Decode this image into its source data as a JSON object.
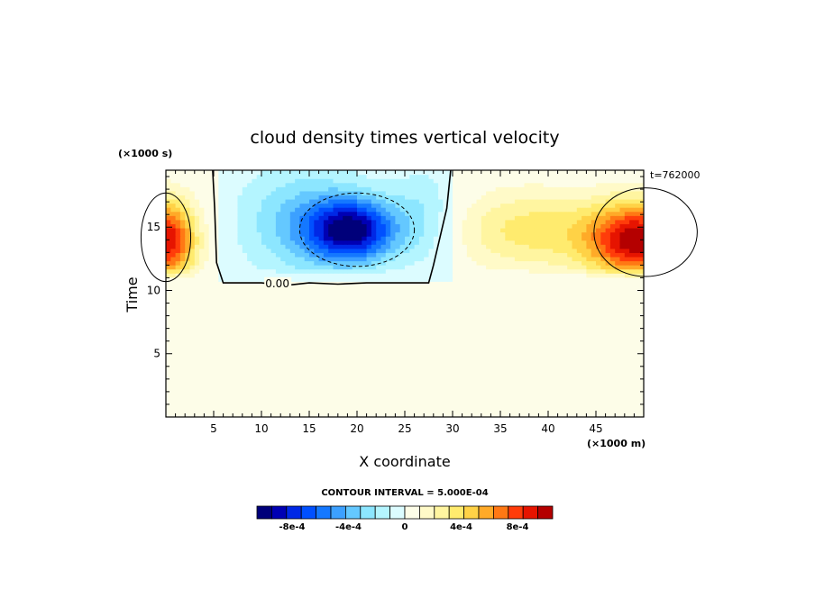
{
  "chart_data": {
    "type": "heatmap",
    "title": "cloud density times vertical velocity",
    "xlabel": "X coordinate",
    "ylabel": "Time",
    "x_unit": "(×1000 m)",
    "y_unit": "(×1000 s)",
    "timestamp": "t=762000",
    "xlim": [
      0,
      50
    ],
    "ylim": [
      0,
      19.5
    ],
    "x_ticks": [
      5,
      10,
      15,
      20,
      25,
      30,
      35,
      40,
      45
    ],
    "y_ticks": [
      5,
      10,
      15
    ],
    "contour_label": "0.00",
    "contour_interval_text": "CONTOUR INTERVAL = 5.000E-04",
    "colorbar": {
      "labels": [
        "-8e-4",
        "-4e-4",
        "0",
        "4e-4",
        "8e-4"
      ],
      "label_values": [
        -0.0008,
        -0.0004,
        0,
        0.0004,
        0.0008
      ],
      "range": [
        -0.00105,
        0.00105
      ],
      "colors": [
        "#00007a",
        "#0000b4",
        "#0028e6",
        "#0050ff",
        "#1478ff",
        "#3ca0ff",
        "#64c8ff",
        "#8ce6ff",
        "#b4f5ff",
        "#dcfcff",
        "#fdfde8",
        "#fffac8",
        "#fff5a0",
        "#ffeb6e",
        "#ffd246",
        "#ffaa28",
        "#ff7814",
        "#ff3c0a",
        "#e61400",
        "#b40000"
      ]
    },
    "features": [
      {
        "name": "updraft core left",
        "x": 0,
        "y": 14,
        "peak": 0.0009
      },
      {
        "name": "updraft core right",
        "x": 50,
        "y": 14,
        "peak": 0.001
      },
      {
        "name": "weak updraft band",
        "x": 38,
        "y": 14.5,
        "peak": 0.0004
      },
      {
        "name": "downdraft core",
        "x": 19.5,
        "y": 14.8,
        "peak": -0.0009
      }
    ]
  }
}
